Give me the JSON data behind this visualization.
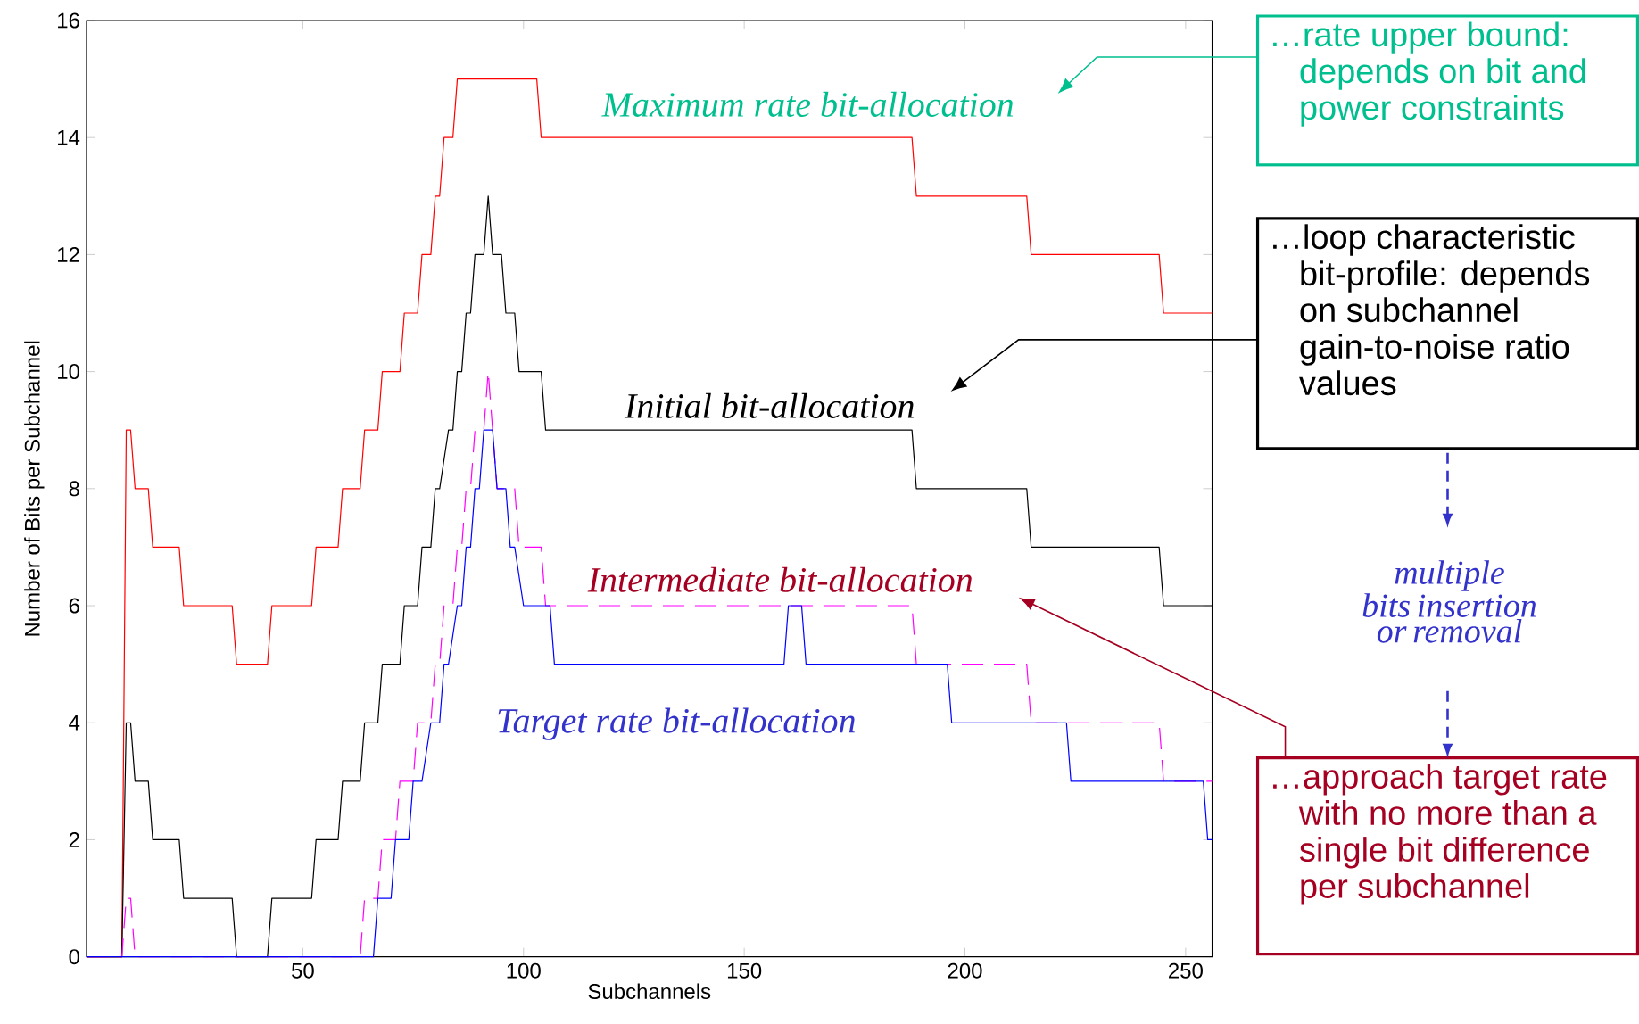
{
  "chart_data": {
    "type": "line",
    "xlabel": "Subchannels",
    "ylabel": "Number of Bits per Subchannel",
    "xlim": [
      1,
      256
    ],
    "ylim": [
      0,
      16
    ],
    "xticks": [
      50,
      100,
      150,
      200,
      250
    ],
    "yticks": [
      0,
      2,
      4,
      6,
      8,
      10,
      12,
      14,
      16
    ],
    "series": [
      {
        "color": "#ff0000",
        "x": [
          1,
          9,
          10,
          11,
          12,
          15,
          16,
          22,
          23,
          34,
          35,
          42,
          43,
          52,
          53,
          58,
          59,
          63,
          64,
          67,
          68,
          72,
          73,
          76,
          77,
          79,
          80,
          81,
          82,
          84,
          85,
          103,
          104,
          188,
          189,
          214,
          215,
          244,
          245,
          256
        ],
        "values": [
          0,
          0,
          9,
          9,
          8,
          8,
          7,
          7,
          6,
          6,
          5,
          5,
          6,
          6,
          7,
          7,
          8,
          8,
          9,
          9,
          10,
          10,
          11,
          11,
          12,
          12,
          13,
          13,
          14,
          14,
          15,
          15,
          14,
          14,
          13,
          13,
          12,
          12,
          11,
          11
        ]
      },
      {
        "color": "#000000",
        "x": [
          1,
          9,
          10,
          11,
          12,
          15,
          16,
          22,
          23,
          34,
          35,
          42,
          43,
          52,
          53,
          58,
          59,
          63,
          64,
          67,
          68,
          72,
          73,
          76,
          77,
          79,
          80,
          81,
          83,
          84,
          85,
          86,
          87,
          88,
          89,
          91,
          92,
          93,
          95,
          96,
          98,
          99,
          104,
          105,
          188,
          189,
          214,
          215,
          244,
          245,
          256
        ],
        "values": [
          0,
          0,
          4,
          4,
          3,
          3,
          2,
          2,
          1,
          1,
          0,
          0,
          1,
          1,
          2,
          2,
          3,
          3,
          4,
          4,
          5,
          5,
          6,
          6,
          7,
          7,
          8,
          8,
          9,
          9,
          10,
          10,
          11,
          11,
          12,
          12,
          13,
          12,
          12,
          11,
          11,
          10,
          10,
          9,
          9,
          8,
          8,
          7,
          7,
          6,
          6
        ]
      },
      {
        "color": "#ff00ff",
        "line_style": "dashed",
        "x": [
          1,
          9,
          10,
          11,
          12,
          63,
          64,
          67,
          68,
          71,
          72,
          75,
          76,
          79,
          80,
          81,
          82,
          84,
          85,
          86,
          87,
          88,
          89,
          91,
          92,
          93,
          94,
          98,
          99,
          104,
          105,
          188,
          189,
          214,
          215,
          244,
          245,
          256
        ],
        "values": [
          0,
          0,
          1,
          1,
          0,
          0,
          1,
          1,
          2,
          2,
          3,
          3,
          4,
          4,
          5,
          5,
          6,
          6,
          7,
          7,
          8,
          8,
          9,
          9,
          10,
          9,
          8,
          8,
          7,
          7,
          6,
          6,
          5,
          5,
          4,
          4,
          3,
          3
        ]
      },
      {
        "color": "#0000ff",
        "x": [
          1,
          66,
          67,
          70,
          71,
          74,
          75,
          77,
          79,
          81,
          82,
          83,
          85,
          86,
          87,
          88,
          89,
          90,
          91,
          93,
          94,
          96,
          97,
          98,
          100,
          106,
          107,
          159,
          160,
          163,
          164,
          196,
          197,
          223,
          224,
          254,
          255,
          256
        ],
        "values": [
          0,
          0,
          1,
          1,
          2,
          2,
          3,
          3,
          4,
          4,
          5,
          5,
          6,
          6,
          7,
          7,
          8,
          8,
          9,
          9,
          8,
          8,
          7,
          7,
          6,
          6,
          5,
          5,
          6,
          6,
          5,
          5,
          4,
          4,
          3,
          3,
          2,
          2
        ]
      }
    ],
    "annotations": [
      "Maximum rate bit-allocation",
      "Initial bit-allocation",
      "Intermediate bit-allocation",
      "Target rate bit-allocation",
      "…rate upper bound: depends on bit and power constraints",
      "…loop characteristic bit-profile: depends on subchannel gain-to-noise ratio values",
      "multiple",
      "bits insertion or removal",
      "…approach target rate with no more than a single bit difference per subchannel"
    ]
  }
}
